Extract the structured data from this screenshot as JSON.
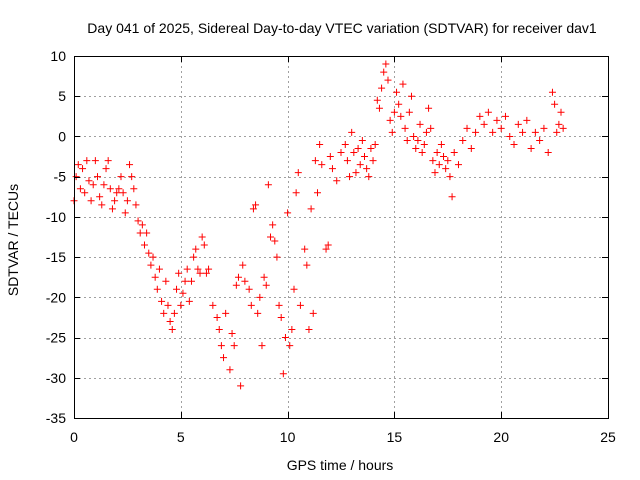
{
  "chart_data": {
    "type": "scatter",
    "title": "Day 041 of 2025, Sidereal Day-to-day VTEC variation (SDTVAR) for receiver dav1",
    "xlabel": "GPS time / hours",
    "ylabel": "SDTVAR / TECUs",
    "xlim": [
      0,
      25
    ],
    "ylim": [
      -35,
      10
    ],
    "xticks": [
      0,
      5,
      10,
      15,
      20,
      25
    ],
    "yticks": [
      -35,
      -30,
      -25,
      -20,
      -15,
      -10,
      -5,
      0,
      5,
      10
    ],
    "grid": true,
    "marker": "plus",
    "marker_color": "#ff0000",
    "series": [
      {
        "name": "SDTVAR",
        "points": [
          [
            0.0,
            -8.0
          ],
          [
            0.1,
            -5.0
          ],
          [
            0.2,
            -3.5
          ],
          [
            0.3,
            -6.5
          ],
          [
            0.4,
            -4.0
          ],
          [
            0.5,
            -7.0
          ],
          [
            0.6,
            -3.0
          ],
          [
            0.7,
            -5.5
          ],
          [
            0.8,
            -8.0
          ],
          [
            0.9,
            -6.0
          ],
          [
            1.0,
            -3.0
          ],
          [
            1.1,
            -5.0
          ],
          [
            1.2,
            -7.5
          ],
          [
            1.3,
            -8.5
          ],
          [
            1.4,
            -6.0
          ],
          [
            1.5,
            -4.0
          ],
          [
            1.6,
            -3.0
          ],
          [
            1.7,
            -6.5
          ],
          [
            1.8,
            -9.0
          ],
          [
            1.9,
            -8.0
          ],
          [
            2.0,
            -7.0
          ],
          [
            2.1,
            -6.5
          ],
          [
            2.2,
            -5.0
          ],
          [
            2.3,
            -7.0
          ],
          [
            2.4,
            -9.5
          ],
          [
            2.5,
            -8.0
          ],
          [
            2.6,
            -3.5
          ],
          [
            2.7,
            -5.0
          ],
          [
            2.8,
            -6.5
          ],
          [
            2.9,
            -8.5
          ],
          [
            3.0,
            -10.5
          ],
          [
            3.1,
            -12.0
          ],
          [
            3.2,
            -11.0
          ],
          [
            3.3,
            -13.5
          ],
          [
            3.4,
            -12.0
          ],
          [
            3.5,
            -14.5
          ],
          [
            3.6,
            -16.0
          ],
          [
            3.7,
            -15.0
          ],
          [
            3.8,
            -17.5
          ],
          [
            3.9,
            -19.0
          ],
          [
            4.0,
            -16.5
          ],
          [
            4.1,
            -20.5
          ],
          [
            4.2,
            -22.0
          ],
          [
            4.3,
            -18.0
          ],
          [
            4.4,
            -21.0
          ],
          [
            4.5,
            -23.0
          ],
          [
            4.6,
            -24.0
          ],
          [
            4.7,
            -22.0
          ],
          [
            4.8,
            -19.0
          ],
          [
            4.9,
            -17.0
          ],
          [
            5.0,
            -21.0
          ],
          [
            5.1,
            -19.5
          ],
          [
            5.2,
            -18.0
          ],
          [
            5.3,
            -16.5
          ],
          [
            5.4,
            -20.5
          ],
          [
            5.5,
            -18.0
          ],
          [
            5.6,
            -15.0
          ],
          [
            5.7,
            -14.0
          ],
          [
            5.8,
            -16.5
          ],
          [
            5.9,
            -17.0
          ],
          [
            6.0,
            -12.5
          ],
          [
            6.1,
            -13.5
          ],
          [
            6.2,
            -17.0
          ],
          [
            6.3,
            -16.5
          ],
          [
            6.5,
            -21.0
          ],
          [
            6.7,
            -22.5
          ],
          [
            6.8,
            -24.0
          ],
          [
            6.9,
            -26.0
          ],
          [
            7.0,
            -27.5
          ],
          [
            7.1,
            -22.0
          ],
          [
            7.3,
            -29.0
          ],
          [
            7.4,
            -24.5
          ],
          [
            7.5,
            -26.0
          ],
          [
            7.6,
            -18.5
          ],
          [
            7.7,
            -17.5
          ],
          [
            7.8,
            -31.0
          ],
          [
            7.9,
            -16.0
          ],
          [
            8.0,
            -18.0
          ],
          [
            8.2,
            -19.0
          ],
          [
            8.3,
            -21.0
          ],
          [
            8.4,
            -9.0
          ],
          [
            8.5,
            -8.5
          ],
          [
            8.6,
            -22.0
          ],
          [
            8.7,
            -20.0
          ],
          [
            8.8,
            -26.0
          ],
          [
            8.9,
            -17.5
          ],
          [
            9.0,
            -18.5
          ],
          [
            9.1,
            -6.0
          ],
          [
            9.2,
            -12.5
          ],
          [
            9.3,
            -11.0
          ],
          [
            9.4,
            -13.0
          ],
          [
            9.5,
            -15.0
          ],
          [
            9.6,
            -21.0
          ],
          [
            9.7,
            -22.5
          ],
          [
            9.8,
            -29.5
          ],
          [
            9.9,
            -25.0
          ],
          [
            10.0,
            -9.5
          ],
          [
            10.1,
            -26.0
          ],
          [
            10.2,
            -24.0
          ],
          [
            10.3,
            -19.0
          ],
          [
            10.4,
            -7.0
          ],
          [
            10.5,
            -4.5
          ],
          [
            10.6,
            -21.0
          ],
          [
            10.8,
            -14.0
          ],
          [
            10.9,
            -16.0
          ],
          [
            11.0,
            -24.0
          ],
          [
            11.1,
            -9.0
          ],
          [
            11.2,
            -22.0
          ],
          [
            11.3,
            -3.0
          ],
          [
            11.4,
            -7.0
          ],
          [
            11.5,
            -1.0
          ],
          [
            11.6,
            -3.5
          ],
          [
            11.8,
            -14.0
          ],
          [
            11.9,
            -13.5
          ],
          [
            12.0,
            -2.5
          ],
          [
            12.1,
            -4.0
          ],
          [
            12.3,
            -5.5
          ],
          [
            12.5,
            -2.0
          ],
          [
            12.7,
            -1.0
          ],
          [
            12.8,
            -3.0
          ],
          [
            12.9,
            -5.0
          ],
          [
            13.0,
            0.5
          ],
          [
            13.1,
            -2.0
          ],
          [
            13.2,
            -4.5
          ],
          [
            13.3,
            -1.5
          ],
          [
            13.4,
            -3.5
          ],
          [
            13.5,
            -0.5
          ],
          [
            13.6,
            -2.5
          ],
          [
            13.7,
            -4.0
          ],
          [
            13.8,
            -5.0
          ],
          [
            13.9,
            -1.5
          ],
          [
            14.0,
            -3.0
          ],
          [
            14.1,
            -1.0
          ],
          [
            14.2,
            4.5
          ],
          [
            14.3,
            3.5
          ],
          [
            14.4,
            6.0
          ],
          [
            14.5,
            8.0
          ],
          [
            14.6,
            9.0
          ],
          [
            14.7,
            7.0
          ],
          [
            14.8,
            2.0
          ],
          [
            14.9,
            0.5
          ],
          [
            15.0,
            3.0
          ],
          [
            15.1,
            5.5
          ],
          [
            15.2,
            4.0
          ],
          [
            15.3,
            2.5
          ],
          [
            15.4,
            6.5
          ],
          [
            15.5,
            1.0
          ],
          [
            15.6,
            -0.5
          ],
          [
            15.7,
            3.0
          ],
          [
            15.8,
            5.0
          ],
          [
            15.9,
            0.0
          ],
          [
            16.0,
            -1.5
          ],
          [
            16.1,
            -0.5
          ],
          [
            16.2,
            1.5
          ],
          [
            16.3,
            -2.0
          ],
          [
            16.4,
            -1.0
          ],
          [
            16.5,
            0.5
          ],
          [
            16.6,
            3.5
          ],
          [
            16.7,
            1.0
          ],
          [
            16.8,
            -3.0
          ],
          [
            16.9,
            -4.5
          ],
          [
            17.0,
            -2.0
          ],
          [
            17.1,
            -3.5
          ],
          [
            17.2,
            -1.0
          ],
          [
            17.3,
            -2.5
          ],
          [
            17.4,
            -4.0
          ],
          [
            17.5,
            -3.0
          ],
          [
            17.6,
            -5.0
          ],
          [
            17.7,
            -7.5
          ],
          [
            17.8,
            -2.0
          ],
          [
            18.0,
            -3.5
          ],
          [
            18.2,
            -0.5
          ],
          [
            18.4,
            1.0
          ],
          [
            18.6,
            -1.5
          ],
          [
            18.8,
            0.5
          ],
          [
            19.0,
            2.5
          ],
          [
            19.2,
            1.5
          ],
          [
            19.4,
            3.0
          ],
          [
            19.6,
            0.5
          ],
          [
            19.8,
            2.0
          ],
          [
            20.0,
            1.0
          ],
          [
            20.2,
            2.5
          ],
          [
            20.4,
            0.0
          ],
          [
            20.6,
            -1.0
          ],
          [
            20.8,
            1.5
          ],
          [
            21.0,
            0.5
          ],
          [
            21.2,
            2.0
          ],
          [
            21.4,
            -1.5
          ],
          [
            21.6,
            0.5
          ],
          [
            21.8,
            -0.5
          ],
          [
            22.0,
            1.0
          ],
          [
            22.2,
            -2.0
          ],
          [
            22.4,
            5.5
          ],
          [
            22.5,
            4.0
          ],
          [
            22.6,
            0.5
          ],
          [
            22.7,
            1.5
          ],
          [
            22.8,
            3.0
          ],
          [
            22.9,
            1.0
          ]
        ]
      }
    ]
  }
}
